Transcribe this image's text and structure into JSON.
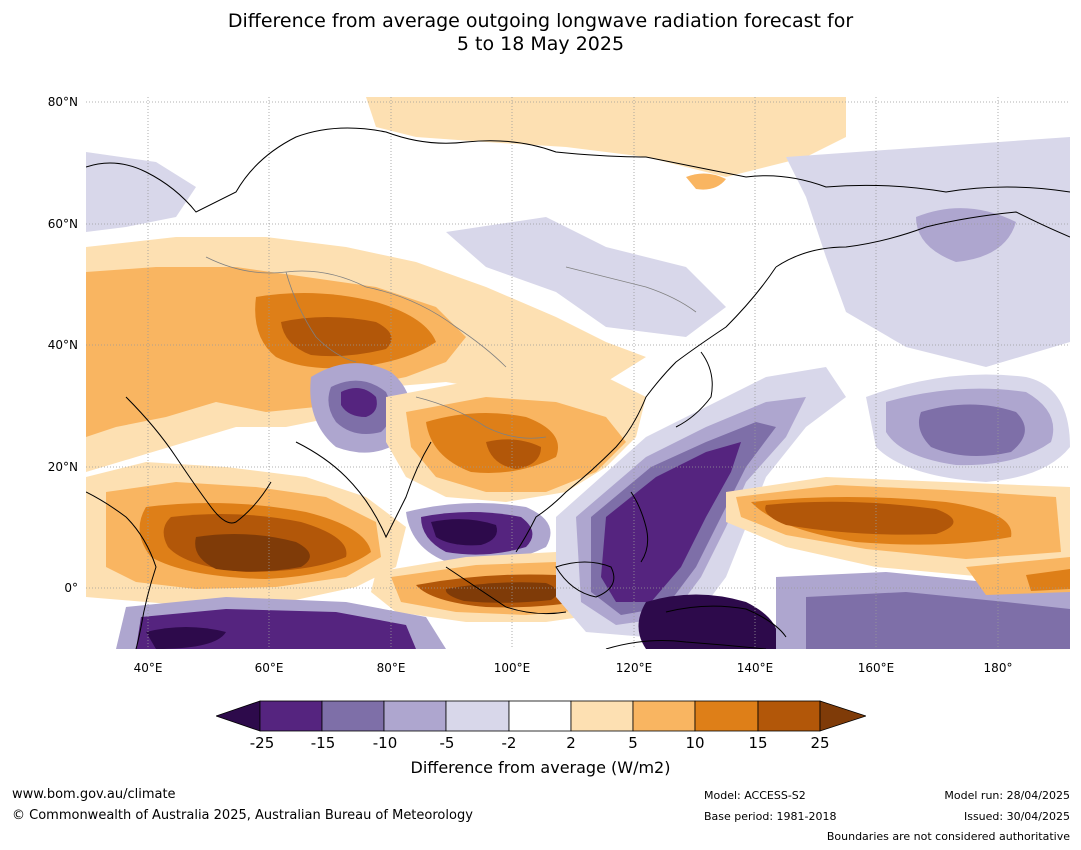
{
  "title": {
    "line1": "Difference from average outgoing longwave radiation forecast for",
    "line2": "5 to 18 May 2025"
  },
  "map": {
    "lat_labels": [
      "80°N",
      "60°N",
      "40°N",
      "20°N",
      "0°"
    ],
    "lon_labels": [
      "40°E",
      "60°E",
      "80°E",
      "100°E",
      "120°E",
      "140°E",
      "160°E",
      "180°"
    ],
    "colors": {
      "v_neg_25_below": "#2d0a4b",
      "v_neg_25_to_neg_15": "#55247f",
      "v_neg_15_to_neg_10": "#7e6fa8",
      "v_neg_10_to_neg_5": "#aea6cf",
      "v_neg_5_to_neg_2": "#d8d7ea",
      "v_neg_2_to_2": "#ffffff",
      "v_2_to_5": "#fde0b2",
      "v_5_to_10": "#f9b561",
      "v_10_to_15": "#de7f18",
      "v_15_to_25": "#b25709",
      "v_25_above": "#7f3b08"
    }
  },
  "colorbar": {
    "ticks": [
      "-25",
      "-15",
      "-10",
      "-5",
      "-2",
      "2",
      "5",
      "10",
      "15",
      "25"
    ],
    "label": "Difference from average (W/m2)"
  },
  "footer": {
    "url": "www.bom.gov.au/climate",
    "copyright": "© Commonwealth of Australia 2025, Australian Bureau of Meteorology",
    "model": "Model: ACCESS-S2",
    "base_period": "Base period: 1981-2018",
    "model_run": "Model run: 28/04/2025",
    "issued": "Issued: 30/04/2025",
    "disclaimer": "Boundaries are not considered authoritative"
  }
}
